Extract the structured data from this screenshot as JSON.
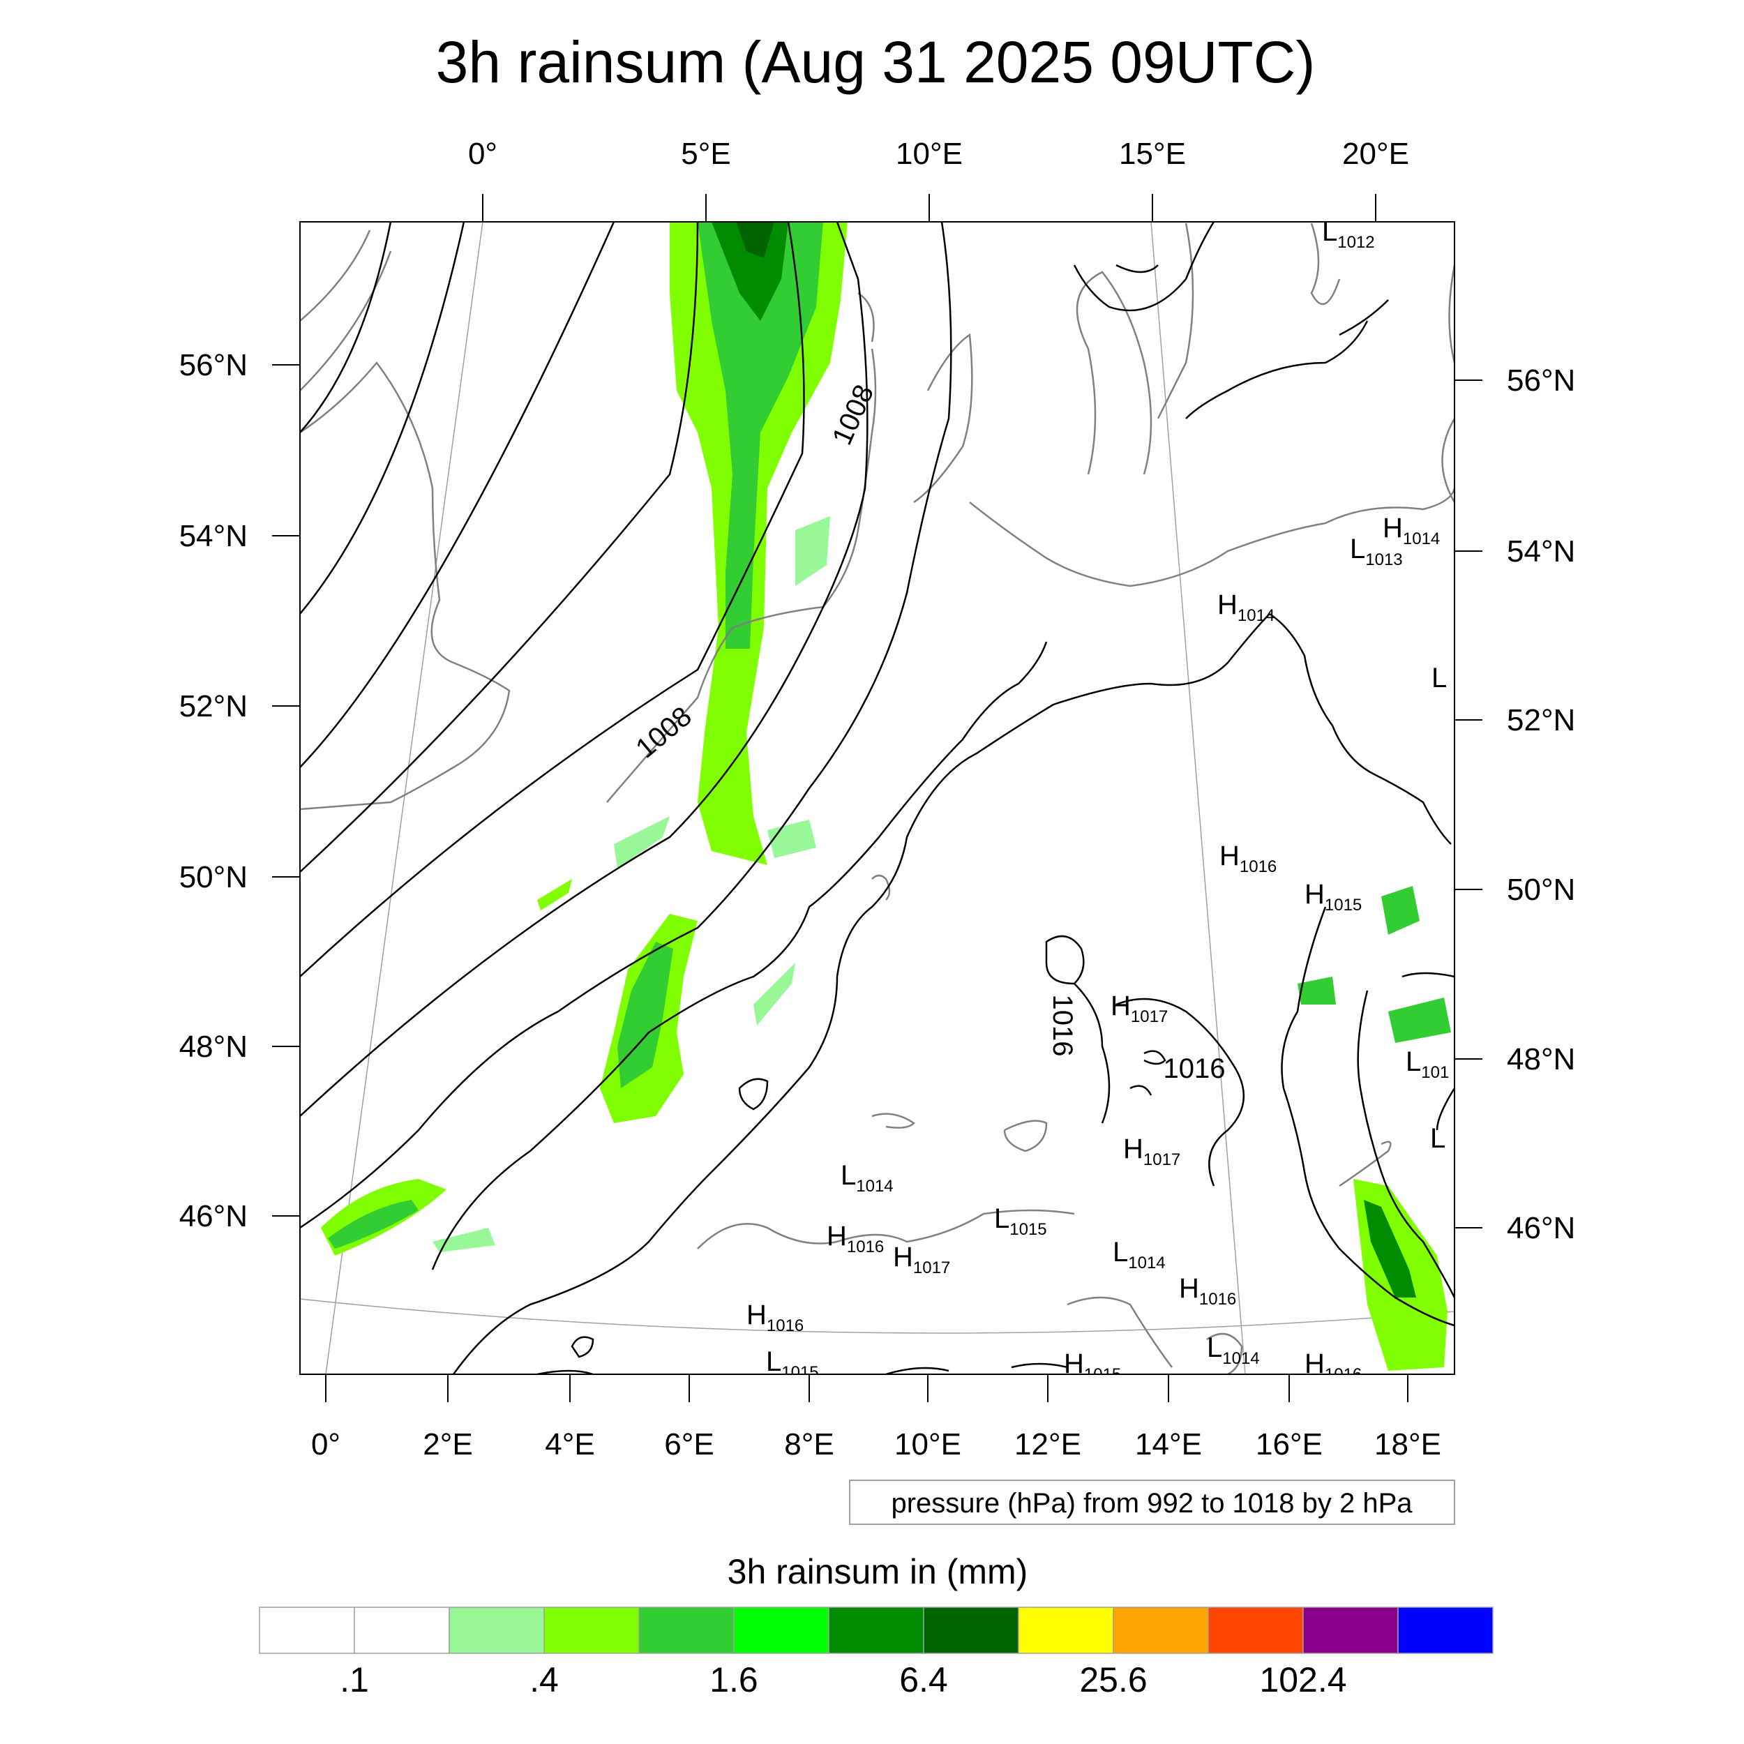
{
  "title": "3h rainsum (Aug 31 2025 09UTC)",
  "top_lon_ticks": [
    "0°",
    "5°E",
    "10°E",
    "15°E",
    "20°E"
  ],
  "bottom_lon_ticks": [
    "0°",
    "2°E",
    "4°E",
    "6°E",
    "8°E",
    "10°E",
    "12°E",
    "14°E",
    "16°E",
    "18°E"
  ],
  "left_lat_ticks": [
    "56°N",
    "54°N",
    "52°N",
    "50°N",
    "48°N",
    "46°N"
  ],
  "right_lat_ticks": [
    "56°N",
    "54°N",
    "52°N",
    "50°N",
    "48°N",
    "46°N"
  ],
  "isobar_labels": [
    "1008",
    "1008",
    "1016",
    "1016"
  ],
  "pressure_centers": [
    {
      "letter": "L",
      "value": "1012"
    },
    {
      "letter": "H",
      "value": "1014"
    },
    {
      "letter": "L",
      "value": "1013"
    },
    {
      "letter": "H",
      "value": "1014"
    },
    {
      "letter": "L",
      "value": ""
    },
    {
      "letter": "H",
      "value": "1016"
    },
    {
      "letter": "H",
      "value": "1015"
    },
    {
      "letter": "H",
      "value": "1017"
    },
    {
      "letter": "L",
      "value": "101"
    },
    {
      "letter": "L",
      "value": ""
    },
    {
      "letter": "H",
      "value": "1017"
    },
    {
      "letter": "L",
      "value": "1014"
    },
    {
      "letter": "L",
      "value": "1015"
    },
    {
      "letter": "H",
      "value": "1016"
    },
    {
      "letter": "H",
      "value": "1017"
    },
    {
      "letter": "L",
      "value": "1014"
    },
    {
      "letter": "H",
      "value": "1016"
    },
    {
      "letter": "H",
      "value": "1016"
    },
    {
      "letter": "L",
      "value": "1015"
    },
    {
      "letter": "L",
      "value": "1014"
    },
    {
      "letter": "H",
      "value": "1015"
    },
    {
      "letter": "H",
      "value": "1016"
    }
  ],
  "pressure_note": "pressure (hPa) from 992 to 1018 by 2 hPa",
  "colorbar": {
    "title": "3h rainsum in (mm)",
    "colors": [
      "#ffffff",
      "#ffffff",
      "#98f898",
      "#80ff00",
      "#32cd32",
      "#00ff00",
      "#008b00",
      "#006400",
      "#ffff00",
      "#ffa500",
      "#ff4500",
      "#8b008b",
      "#0000ff"
    ],
    "labels": [
      ".1",
      ".4",
      "1.6",
      "6.4",
      "25.6",
      "102.4"
    ]
  }
}
